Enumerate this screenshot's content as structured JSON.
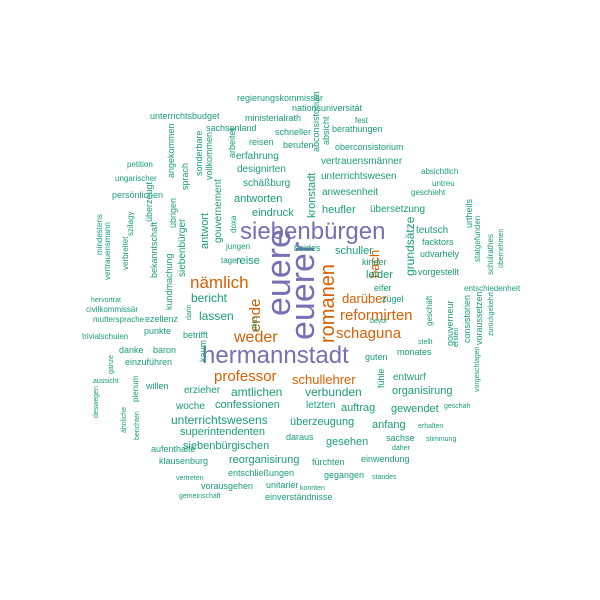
{
  "colors": {
    "large": "#7570b3",
    "medium": "#d95f02",
    "small": "#1b9e77"
  },
  "words": [
    {
      "id": "euere",
      "text": "euere",
      "size": "xl",
      "color": "large"
    },
    {
      "id": "euerer",
      "text": "euerer",
      "size": "xl",
      "color": "large"
    },
    {
      "id": "siebenbuergen",
      "text": "siebenbürgen",
      "size": "l",
      "color": "large"
    },
    {
      "id": "hermannstadt",
      "text": "hermannstadt",
      "size": "l",
      "color": "large"
    },
    {
      "id": "romanen",
      "text": "romanen",
      "size": "m",
      "color": "medium"
    },
    {
      "id": "naemlich",
      "text": "nämlich",
      "size": "m",
      "color": "medium"
    },
    {
      "id": "professor",
      "text": "professor",
      "size": "m",
      "color": "medium"
    },
    {
      "id": "reformirten",
      "text": "reformirten",
      "size": "m",
      "color": "medium"
    },
    {
      "id": "schaguna",
      "text": "schaguna",
      "size": "m",
      "color": "medium"
    },
    {
      "id": "weder",
      "text": "weder",
      "size": "m",
      "color": "medium"
    },
    {
      "id": "ende",
      "text": "ende",
      "size": "m",
      "color": "medium"
    },
    {
      "id": "schullehrer",
      "text": "schullehrer",
      "size": "sm",
      "color": "medium"
    },
    {
      "id": "darueber",
      "text": "darüber",
      "size": "sm",
      "color": "medium"
    },
    {
      "id": "bach",
      "text": "bach",
      "size": "sm",
      "color": "medium"
    },
    {
      "id": "regierungskommissaer",
      "text": "regierungskommissär",
      "size": "xs",
      "color": "small"
    },
    {
      "id": "nationsuniversitaet",
      "text": "nationsuniversität",
      "size": "xs",
      "color": "small"
    },
    {
      "id": "unterrichtsbudget",
      "text": "unterrichtsbudget",
      "size": "xs",
      "color": "small"
    },
    {
      "id": "ministerialrath",
      "text": "ministerialrath",
      "size": "xs",
      "color": "small"
    },
    {
      "id": "fest",
      "text": "fest",
      "size": "xxs",
      "color": "small"
    },
    {
      "id": "sachsenland",
      "text": "sachsenland",
      "size": "xs",
      "color": "small"
    },
    {
      "id": "schneller",
      "text": "schneller",
      "size": "xs",
      "color": "small"
    },
    {
      "id": "absicht",
      "text": "absicht",
      "size": "xs",
      "color": "small"
    },
    {
      "id": "berathungen",
      "text": "berathungen",
      "size": "xs",
      "color": "small"
    },
    {
      "id": "angekommen",
      "text": "angekommen",
      "size": "xs",
      "color": "small"
    },
    {
      "id": "sonderbare",
      "text": "sonderbare",
      "size": "xs",
      "color": "small"
    },
    {
      "id": "vollkommen",
      "text": "vollkommen",
      "size": "xs",
      "color": "small"
    },
    {
      "id": "arbeitet",
      "text": "arbeitet",
      "size": "xs",
      "color": "small"
    },
    {
      "id": "reisen",
      "text": "reisen",
      "size": "xs",
      "color": "small"
    },
    {
      "id": "berufen",
      "text": "berufen",
      "size": "xs",
      "color": "small"
    },
    {
      "id": "abconsistorium",
      "text": "abconsistorium",
      "size": "xs",
      "color": "small"
    },
    {
      "id": "oberconsistorium",
      "text": "oberconsistorium",
      "size": "xs",
      "color": "small"
    },
    {
      "id": "erfahrung",
      "text": "erfahrung",
      "size": "s",
      "color": "small"
    },
    {
      "id": "vertrauensmaenner",
      "text": "vertrauensmänner",
      "size": "s",
      "color": "small"
    },
    {
      "id": "petition",
      "text": "petition",
      "size": "xxs",
      "color": "small"
    },
    {
      "id": "ungarischer",
      "text": "ungarischer",
      "size": "xxs",
      "color": "small"
    },
    {
      "id": "sprach",
      "text": "sprach",
      "size": "xs",
      "color": "small"
    },
    {
      "id": "designirten",
      "text": "designirten",
      "size": "s",
      "color": "small"
    },
    {
      "id": "kronstadt",
      "text": "kronstadt",
      "size": "s",
      "color": "small"
    },
    {
      "id": "unterrichtswesen",
      "text": "unterrichtswesen",
      "size": "s",
      "color": "small"
    },
    {
      "id": "absichtlich",
      "text": "absichtlich",
      "size": "xxs",
      "color": "small"
    },
    {
      "id": "untreu",
      "text": "untreu",
      "size": "xxs",
      "color": "small"
    },
    {
      "id": "persoenlichen",
      "text": "persönlichen",
      "size": "xs",
      "color": "small"
    },
    {
      "id": "ueberzeugt",
      "text": "überzeugt",
      "size": "xs",
      "color": "small"
    },
    {
      "id": "gouvernement",
      "text": "gouvernement",
      "size": "s",
      "color": "small"
    },
    {
      "id": "schaessburg",
      "text": "schäßburg",
      "size": "s",
      "color": "small"
    },
    {
      "id": "anwesenheit",
      "text": "anwesenheit",
      "size": "s",
      "color": "small"
    },
    {
      "id": "geschieht",
      "text": "geschieht",
      "size": "xxs",
      "color": "small"
    },
    {
      "id": "szilagy",
      "text": "szilagy",
      "size": "xxs",
      "color": "small"
    },
    {
      "id": "uebrigen",
      "text": "übrigen",
      "size": "xs",
      "color": "small"
    },
    {
      "id": "antworten",
      "text": "antworten",
      "size": "s",
      "color": "small"
    },
    {
      "id": "heufler",
      "text": "heufler",
      "size": "s",
      "color": "small"
    },
    {
      "id": "uebersetzung",
      "text": "übersetzung",
      "size": "s",
      "color": "small"
    },
    {
      "id": "urtheils",
      "text": "urtheils",
      "size": "xs",
      "color": "small"
    },
    {
      "id": "mindestens",
      "text": "mindestens",
      "size": "xxs",
      "color": "small"
    },
    {
      "id": "vertrauensmann",
      "text": "vertrauensmann",
      "size": "xxs",
      "color": "small"
    },
    {
      "id": "verbreitet",
      "text": "verbreitet",
      "size": "xxs",
      "color": "small"
    },
    {
      "id": "bekanntschaft",
      "text": "bekanntschaft",
      "size": "xs",
      "color": "small"
    },
    {
      "id": "eindruck",
      "text": "eindruck",
      "size": "s",
      "color": "small"
    },
    {
      "id": "doxa",
      "text": "doxa",
      "size": "xxs",
      "color": "small"
    },
    {
      "id": "teutsch",
      "text": "teutsch",
      "size": "s",
      "color": "small"
    },
    {
      "id": "grundsaetze",
      "text": "grundsätze",
      "size": "s",
      "color": "small"
    },
    {
      "id": "statgefunden",
      "text": "statgefunden",
      "size": "xxs",
      "color": "small"
    },
    {
      "id": "schulraethes",
      "text": "schulrathes",
      "size": "xxs",
      "color": "small"
    },
    {
      "id": "uebernehmen",
      "text": "übernehmen",
      "size": "xxs",
      "color": "small"
    },
    {
      "id": "facktors",
      "text": "facktors",
      "size": "xs",
      "color": "small"
    },
    {
      "id": "udvarhely",
      "text": "udvarhely",
      "size": "xs",
      "color": "small"
    },
    {
      "id": "antwort",
      "text": "antwort",
      "size": "s",
      "color": "small"
    },
    {
      "id": "jungen",
      "text": "jungen",
      "size": "xxs",
      "color": "small"
    },
    {
      "id": "schuller",
      "text": "schuller",
      "size": "s",
      "color": "small"
    },
    {
      "id": "tagen",
      "text": "tagen",
      "size": "xxs",
      "color": "small"
    },
    {
      "id": "siebenbuerger",
      "text": "siebenbürger",
      "size": "s",
      "color": "small"
    },
    {
      "id": "reise",
      "text": "reise",
      "size": "s",
      "color": "small"
    },
    {
      "id": "beides",
      "text": "beides",
      "size": "xs",
      "color": "small"
    },
    {
      "id": "kinder",
      "text": "kinder",
      "size": "xs",
      "color": "small"
    },
    {
      "id": "kundmachung",
      "text": "kundmachung",
      "size": "xs",
      "color": "small"
    },
    {
      "id": "leider",
      "text": "leider",
      "size": "s",
      "color": "small"
    },
    {
      "id": "vorgestellt",
      "text": "vorgestellt",
      "size": "xs",
      "color": "small"
    },
    {
      "id": "eifer",
      "text": "eifer",
      "size": "xs",
      "color": "small"
    },
    {
      "id": "entschiedenheit",
      "text": "entschiedenheit",
      "size": "xxs",
      "color": "small"
    },
    {
      "id": "hervortrat",
      "text": "hervortrat",
      "size": "xxs",
      "color": "small"
    },
    {
      "id": "civilkommissaer",
      "text": "civilkommissär",
      "size": "xxs",
      "color": "small"
    },
    {
      "id": "muttersprache",
      "text": "muttersprache",
      "size": "xxs",
      "color": "small"
    },
    {
      "id": "bericht",
      "text": "bericht",
      "size": "s",
      "color": "small"
    },
    {
      "id": "darin",
      "text": "darin",
      "size": "xxs",
      "color": "small"
    },
    {
      "id": "zuegel",
      "text": "zügel",
      "size": "xs",
      "color": "small"
    },
    {
      "id": "geschaeft",
      "text": "geschäft",
      "size": "xs",
      "color": "small"
    },
    {
      "id": "consistorien",
      "text": "consistorien",
      "size": "xs",
      "color": "small"
    },
    {
      "id": "voraussetzen",
      "text": "voraussetzen",
      "size": "xs",
      "color": "small"
    },
    {
      "id": "zurueckgekehrt",
      "text": "zurückgekehrt",
      "size": "xxs",
      "color": "small"
    },
    {
      "id": "lassen",
      "text": "lassen",
      "size": "s",
      "color": "small"
    },
    {
      "id": "ezellenz",
      "text": "ezellenz",
      "size": "xs",
      "color": "small"
    },
    {
      "id": "julius",
      "text": "julius",
      "size": "xxs",
      "color": "small"
    },
    {
      "id": "punkte",
      "text": "punkte",
      "size": "xs",
      "color": "small"
    },
    {
      "id": "trivialschulen",
      "text": "trivialschulen",
      "size": "xxs",
      "color": "small"
    },
    {
      "id": "betrifft",
      "text": "betrifft",
      "size": "xs",
      "color": "small"
    },
    {
      "id": "bevor",
      "text": "bevor",
      "size": "xxs",
      "color": "small"
    },
    {
      "id": "gouverneur",
      "text": "gouverneur",
      "size": "xs",
      "color": "small"
    },
    {
      "id": "ersten",
      "text": "ersten",
      "size": "xxs",
      "color": "small"
    },
    {
      "id": "danke",
      "text": "danke",
      "size": "xs",
      "color": "small"
    },
    {
      "id": "baron",
      "text": "baron",
      "size": "xs",
      "color": "small"
    },
    {
      "id": "stellt",
      "text": "stellt",
      "size": "xxs",
      "color": "small"
    },
    {
      "id": "kaum",
      "text": "kaum",
      "size": "xs",
      "color": "small"
    },
    {
      "id": "guten",
      "text": "guten",
      "size": "xs",
      "color": "small"
    },
    {
      "id": "monates",
      "text": "monates",
      "size": "xs",
      "color": "small"
    },
    {
      "id": "einzufuehren",
      "text": "einzuführen",
      "size": "xs",
      "color": "small"
    },
    {
      "id": "ganze",
      "text": "ganze",
      "size": "xxs",
      "color": "small"
    },
    {
      "id": "willen",
      "text": "willen",
      "size": "xs",
      "color": "small"
    },
    {
      "id": "fuehle",
      "text": "fühle",
      "size": "xs",
      "color": "small"
    },
    {
      "id": "entwurf",
      "text": "entwurf",
      "size": "xs",
      "color": "small"
    },
    {
      "id": "vorgeschlagen",
      "text": "vorgeschlagen",
      "size": "xxs",
      "color": "small"
    },
    {
      "id": "aussicht",
      "text": "aussicht",
      "size": "xxs",
      "color": "small"
    },
    {
      "id": "plenum",
      "text": "plenum",
      "size": "xs",
      "color": "small"
    },
    {
      "id": "erzieher",
      "text": "erzieher",
      "size": "xs",
      "color": "small"
    },
    {
      "id": "amtlichen",
      "text": "amtlichen",
      "size": "s",
      "color": "small"
    },
    {
      "id": "verbunden",
      "text": "verbunden",
      "size": "s",
      "color": "small"
    },
    {
      "id": "organisirung",
      "text": "organisirung",
      "size": "s",
      "color": "small"
    },
    {
      "id": "deswegen",
      "text": "deswegen",
      "size": "xxs",
      "color": "small"
    },
    {
      "id": "aehnliche",
      "text": "ähnliche",
      "size": "xxs",
      "color": "small"
    },
    {
      "id": "woche",
      "text": "woche",
      "size": "xs",
      "color": "small"
    },
    {
      "id": "confessionen",
      "text": "confessionen",
      "size": "s",
      "color": "small"
    },
    {
      "id": "letzten",
      "text": "letzten",
      "size": "xs",
      "color": "small"
    },
    {
      "id": "auftrag",
      "text": "auftrag",
      "size": "s",
      "color": "small"
    },
    {
      "id": "gewendet",
      "text": "gewendet",
      "size": "s",
      "color": "small"
    },
    {
      "id": "geschah",
      "text": "geschah",
      "size": "xxs",
      "color": "small"
    },
    {
      "id": "berichten",
      "text": "berichten",
      "size": "xxs",
      "color": "small"
    },
    {
      "id": "unterrichtswesens",
      "text": "unterrichtswesens",
      "size": "s",
      "color": "small"
    },
    {
      "id": "ueberzeugung",
      "text": "überzeugung",
      "size": "s",
      "color": "small"
    },
    {
      "id": "superintendenten",
      "text": "superintendenten",
      "size": "s",
      "color": "small"
    },
    {
      "id": "anfang",
      "text": "anfang",
      "size": "s",
      "color": "small"
    },
    {
      "id": "erhalten",
      "text": "erhalten",
      "size": "xxs",
      "color": "small"
    },
    {
      "id": "daraus",
      "text": "daraus",
      "size": "xs",
      "color": "small"
    },
    {
      "id": "sachse",
      "text": "sachse",
      "size": "xs",
      "color": "small"
    },
    {
      "id": "stimmung",
      "text": "stimmung",
      "size": "xxs",
      "color": "small"
    },
    {
      "id": "siebenbuergischen",
      "text": "siebenbürgischen",
      "size": "s",
      "color": "small"
    },
    {
      "id": "gesehen",
      "text": "gesehen",
      "size": "s",
      "color": "small"
    },
    {
      "id": "daher",
      "text": "daher",
      "size": "xxs",
      "color": "small"
    },
    {
      "id": "aufenthalte",
      "text": "aufenthalte",
      "size": "xs",
      "color": "small"
    },
    {
      "id": "reorganisirung",
      "text": "reorganisirung",
      "size": "s",
      "color": "small"
    },
    {
      "id": "einwendung",
      "text": "einwendung",
      "size": "xs",
      "color": "small"
    },
    {
      "id": "klausenburg",
      "text": "klausenburg",
      "size": "xs",
      "color": "small"
    },
    {
      "id": "fuerchten",
      "text": "fürchten",
      "size": "xs",
      "color": "small"
    },
    {
      "id": "entschliessungen",
      "text": "entschließungen",
      "size": "xs",
      "color": "small"
    },
    {
      "id": "gegangen",
      "text": "gegangen",
      "size": "xs",
      "color": "small"
    },
    {
      "id": "standes",
      "text": "standes",
      "size": "xxs",
      "color": "small"
    },
    {
      "id": "vertreten",
      "text": "vertreten",
      "size": "xxs",
      "color": "small"
    },
    {
      "id": "vorausgehen",
      "text": "vorausgehen",
      "size": "xs",
      "color": "small"
    },
    {
      "id": "unitarier",
      "text": "unitarier",
      "size": "xs",
      "color": "small"
    },
    {
      "id": "konnten",
      "text": "konnten",
      "size": "xxs",
      "color": "small"
    },
    {
      "id": "gemeinschaft",
      "text": "gemeinschaft",
      "size": "xxs",
      "color": "small"
    },
    {
      "id": "einverstaendnisse",
      "text": "einverständnisse",
      "size": "xs",
      "color": "small"
    }
  ]
}
